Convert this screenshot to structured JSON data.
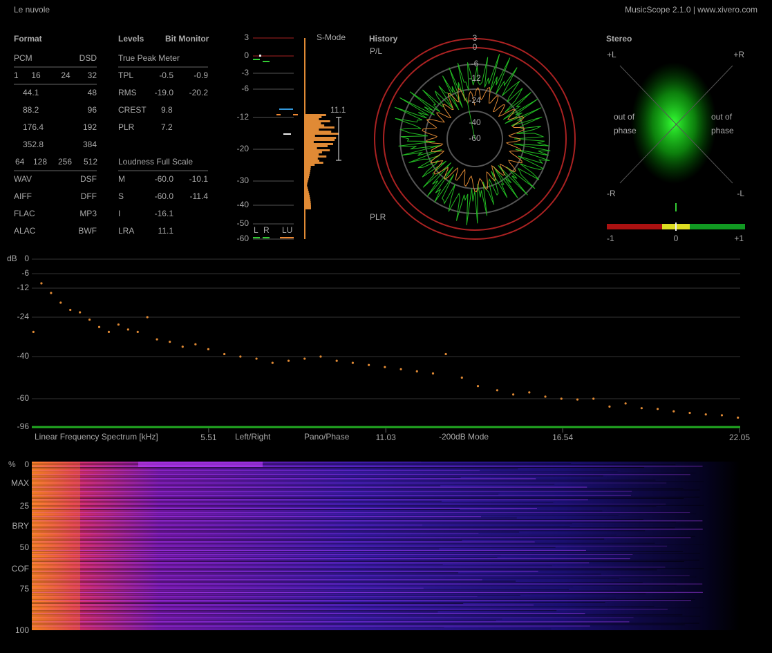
{
  "header": {
    "title": "Le nuvole",
    "app": "MusicScope 2.1.0 | www.xivero.com"
  },
  "format": {
    "title": "Format",
    "pcm": "PCM",
    "dsd": "DSD",
    "bit_depths": [
      "1",
      "16",
      "24",
      "32"
    ],
    "rates": [
      [
        "44.1",
        "48"
      ],
      [
        "88.2",
        "96"
      ],
      [
        "176.4",
        "192"
      ],
      [
        "352.8",
        "384"
      ]
    ],
    "dsd_rates": [
      "64",
      "128",
      "256",
      "512"
    ],
    "containers": [
      [
        "WAV",
        "DSF"
      ],
      [
        "AIFF",
        "DFF"
      ],
      [
        "FLAC",
        "MP3"
      ],
      [
        "ALAC",
        "BWF"
      ]
    ]
  },
  "levels": {
    "title": "Levels",
    "bit_monitor": "Bit Monitor",
    "true_peak_meter": "True Peak Meter",
    "rows": [
      [
        "TPL",
        "-0.5",
        "-0.9"
      ],
      [
        "RMS",
        "-19.0",
        "-20.2"
      ],
      [
        "CREST",
        "9.8"
      ],
      [
        "PLR",
        "7.2"
      ]
    ],
    "loudness_title": "Loudness Full Scale",
    "loudness_rows": [
      [
        "M",
        "-60.0",
        "-10.1"
      ],
      [
        "S",
        "-60.0",
        "-11.4"
      ],
      [
        "I",
        "-16.1"
      ],
      [
        "LRA",
        "11.1"
      ]
    ]
  },
  "meter": {
    "mode": "S-Mode",
    "scale": [
      "3",
      "0",
      "-3",
      "-6",
      "-12",
      "-20",
      "-30",
      "-40",
      "-50",
      "-60"
    ],
    "channels": [
      "L",
      "R",
      "LU"
    ],
    "lra": "11.1"
  },
  "history": {
    "title": "History",
    "top": "P/L",
    "bottom": "PLR",
    "scale": [
      "3",
      "0",
      "-6",
      "-12",
      "-24",
      "-40",
      "-60"
    ]
  },
  "stereo": {
    "title": "Stereo",
    "corners": [
      "+L",
      "+R",
      "-R",
      "-L"
    ],
    "left_phase": [
      "out of",
      "phase"
    ],
    "right_phase": [
      "out of",
      "phase"
    ],
    "correlation": [
      "-1",
      "0",
      "+1"
    ]
  },
  "spectrum": {
    "unit": "dB",
    "title": "Linear Frequency Spectrum [kHz]",
    "modes": [
      "Left/Right",
      "Pano/Phase",
      "-200dB Mode"
    ],
    "ylim": [
      0,
      -96
    ],
    "yticks": [
      0,
      -6,
      -12,
      -24,
      -40,
      -60,
      -96
    ],
    "xlim": [
      0,
      22.05
    ],
    "xticks": [
      5.51,
      11.03,
      16.54,
      22.05
    ],
    "color": "#e08a35",
    "x": [
      0.05,
      0.3,
      0.6,
      0.9,
      1.2,
      1.5,
      1.8,
      2.1,
      2.4,
      2.7,
      3.0,
      3.3,
      3.6,
      3.9,
      4.3,
      4.7,
      5.1,
      5.5,
      6.0,
      6.5,
      7.0,
      7.5,
      8.0,
      8.5,
      9.0,
      9.5,
      10.0,
      10.5,
      11.0,
      11.5,
      12.0,
      12.5,
      12.9,
      13.4,
      13.9,
      14.5,
      15.0,
      15.5,
      16.0,
      16.5,
      17.0,
      17.5,
      18.0,
      18.5,
      19.0,
      19.5,
      20.0,
      20.5,
      21.0,
      21.5,
      22.0
    ],
    "values": [
      -30,
      -10,
      -14,
      -18,
      -21,
      -22,
      -25,
      -28,
      -30,
      -27,
      -29,
      -30,
      -24,
      -33,
      -34,
      -36,
      -35,
      -37,
      -39,
      -40,
      -41,
      -43,
      -42,
      -41,
      -40,
      -42,
      -43,
      -44,
      -45,
      -46,
      -47,
      -48,
      -39,
      -50,
      -54,
      -56,
      -58,
      -57,
      -59,
      -60,
      -61,
      -60,
      -70,
      -66,
      -72,
      -73,
      -76,
      -78,
      -80,
      -81,
      -84
    ]
  },
  "spectrogram": {
    "unit": "%",
    "scale": [
      0,
      25,
      50,
      75,
      100
    ],
    "labels": [
      "MAX",
      "BRY",
      "COF"
    ]
  }
}
